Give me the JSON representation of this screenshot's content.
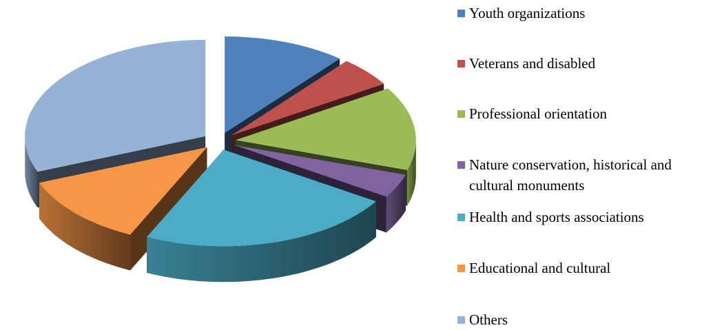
{
  "chart_data": {
    "type": "pie3d",
    "categories": [
      "Youth organizations",
      "Veterans and disabled",
      "Professional orientation",
      "Nature conservation, historical and cultural monuments",
      "Health and sports associations",
      "Educational and cultural",
      "Others"
    ],
    "values": [
      11,
      5,
      14,
      4,
      23,
      12,
      31
    ],
    "colors": [
      "#4f81bd",
      "#c0504d",
      "#9bbb59",
      "#8064a2",
      "#4bacc6",
      "#f79646",
      "#95b3d7"
    ],
    "legend": "right"
  }
}
